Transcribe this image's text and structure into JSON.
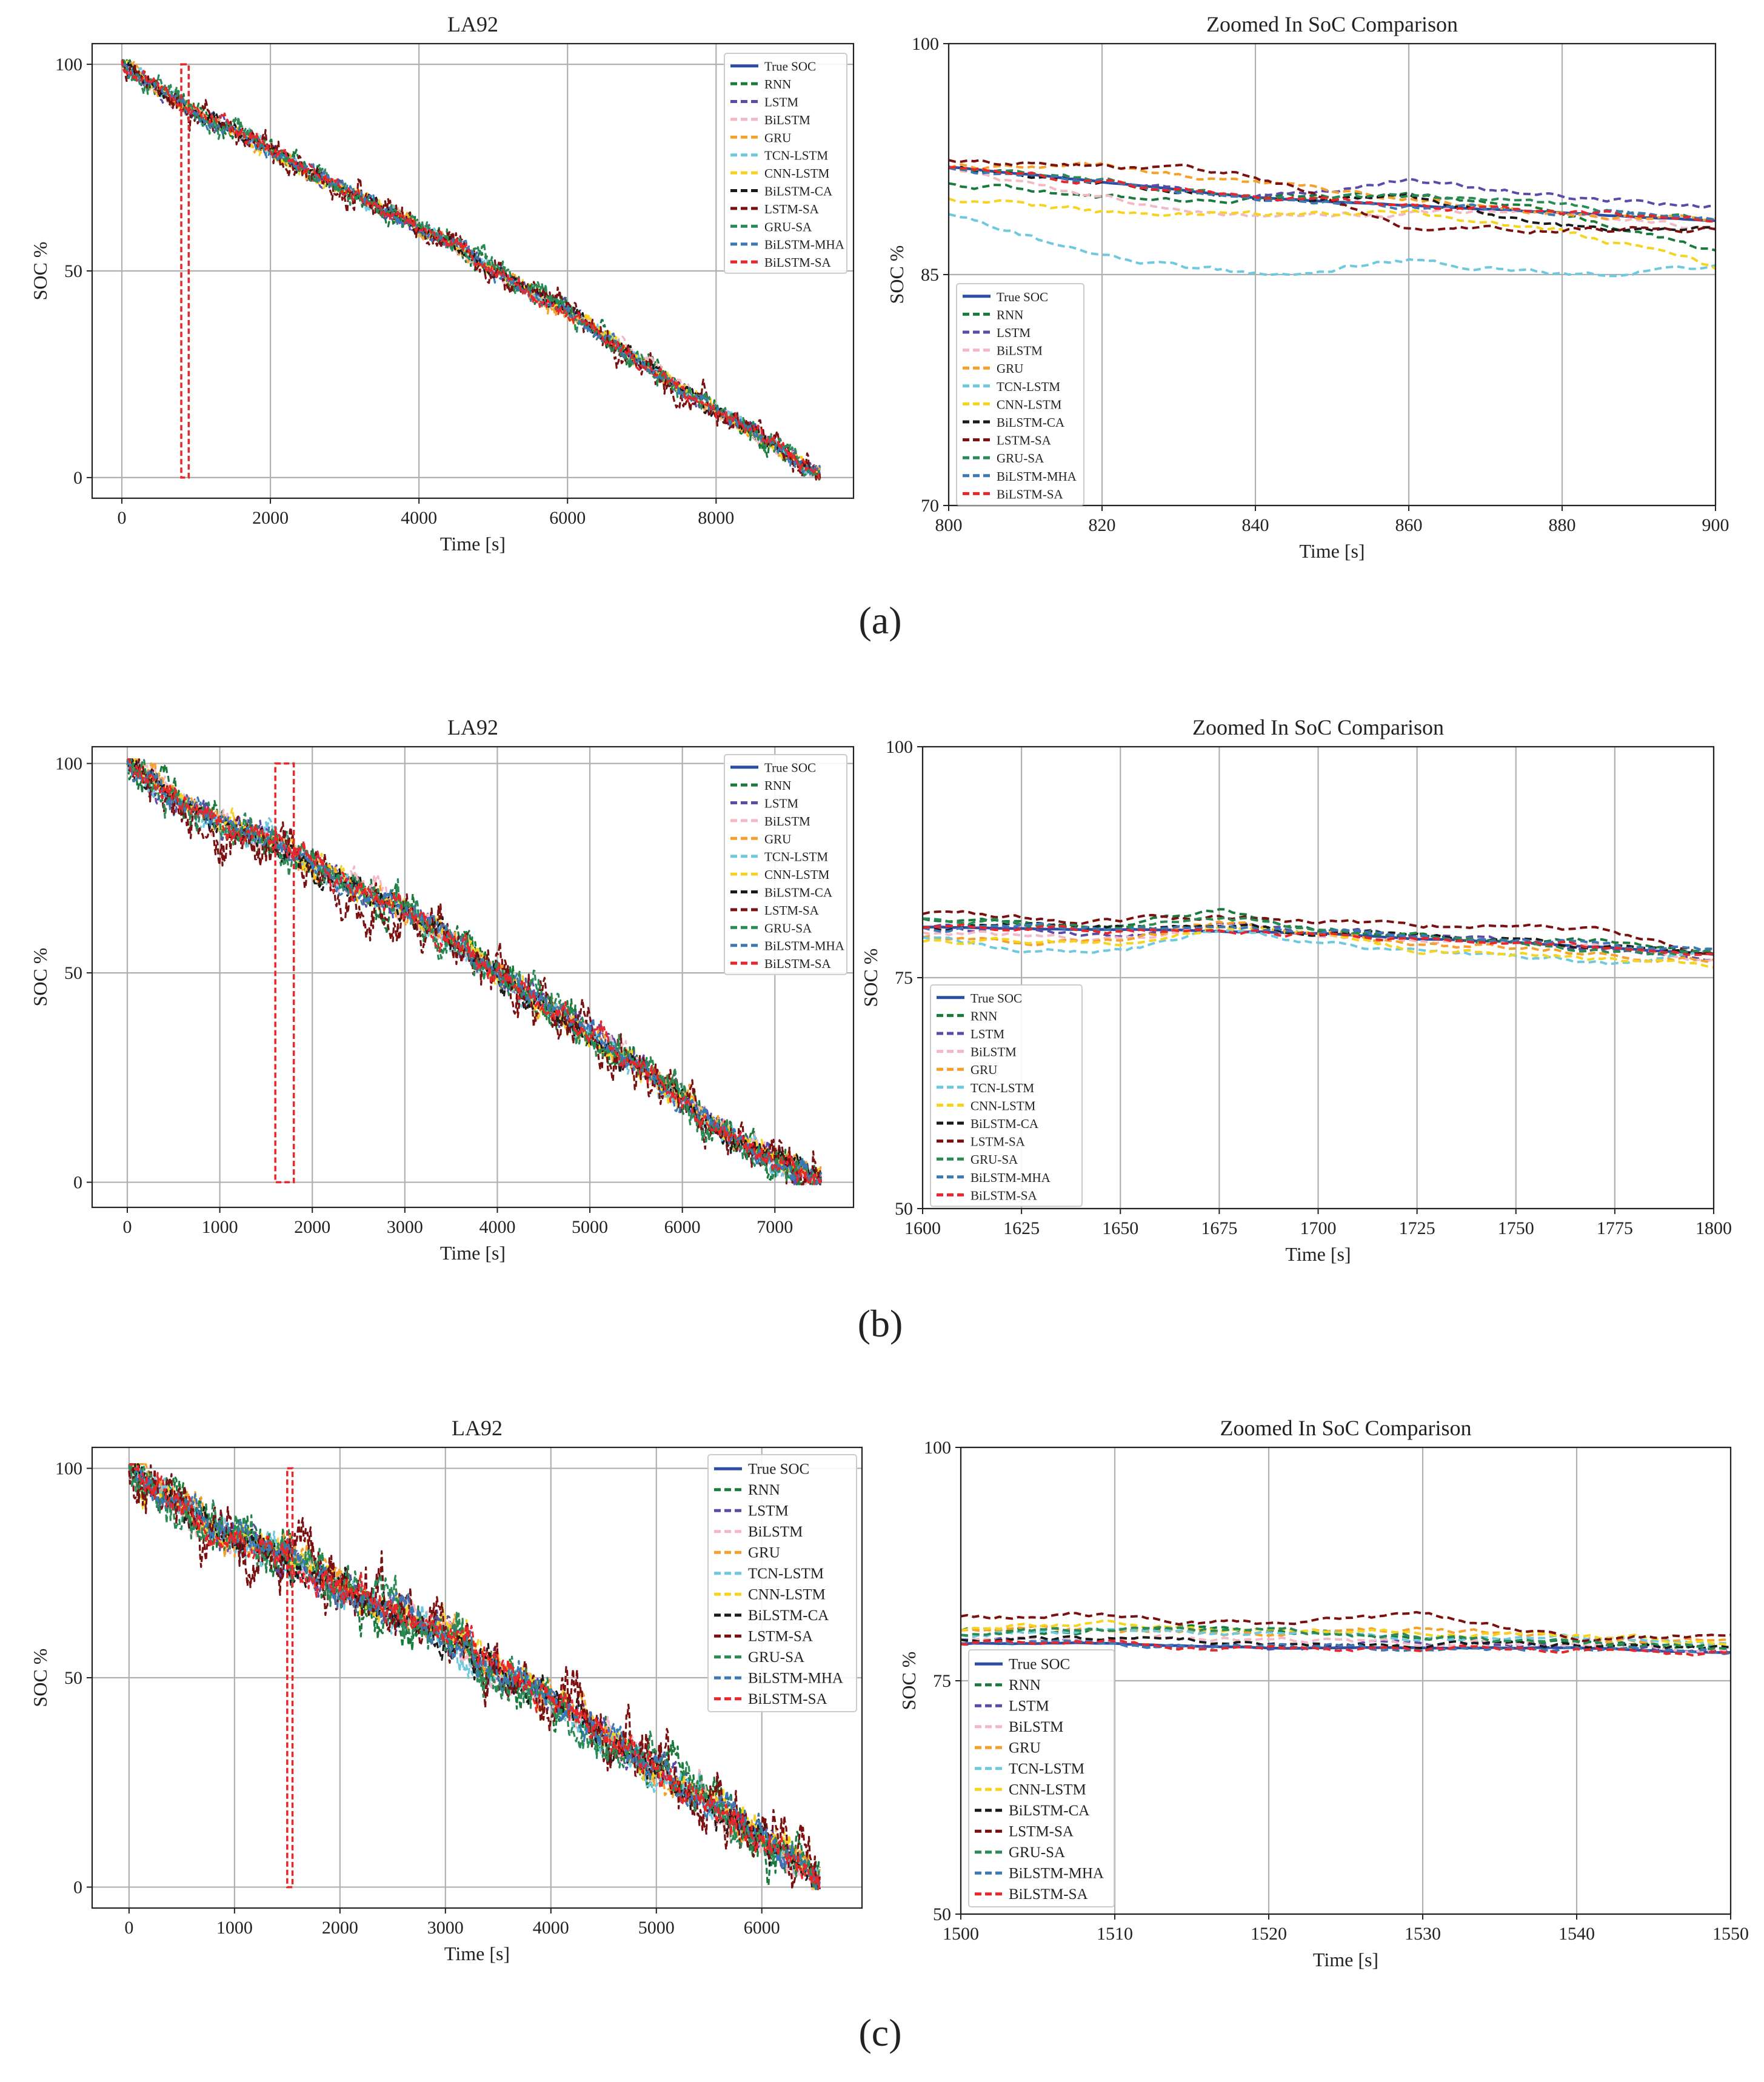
{
  "figure": {
    "series_names": [
      "True SOC",
      "RNN",
      "LSTM",
      "BiLSTM",
      "GRU",
      "TCN-LSTM",
      "CNN-LSTM",
      "BiLSTM-CA",
      "LSTM-SA",
      "GRU-SA",
      "BiLSTM-MHA",
      "BiLSTM-SA"
    ],
    "series_colors": [
      "#2b4ea3",
      "#1a7a3c",
      "#5b4ba8",
      "#f4b8c4",
      "#f5a02a",
      "#6ec9de",
      "#f6d31e",
      "#1a1a1a",
      "#7a1010",
      "#2a8a55",
      "#3b78b4",
      "#e8272a"
    ],
    "series_dashed": [
      false,
      true,
      true,
      true,
      true,
      true,
      true,
      true,
      true,
      true,
      true,
      true
    ],
    "panels": [
      {
        "caption": "(a)",
        "full": {
          "title": "LA92",
          "xlabel": "Time [s]",
          "ylabel": "SOC %",
          "xlim": [
            -400,
            9850
          ],
          "ylim": [
            -5,
            105
          ],
          "xticks": [
            0,
            2000,
            4000,
            6000,
            8000
          ],
          "yticks": [
            0,
            50,
            100
          ],
          "x_end": 9400,
          "zoom_box": [
            800,
            900
          ],
          "noise": 1.0
        },
        "zoom": {
          "title": "Zoomed In SoC Comparison",
          "xlabel": "Time [s]",
          "ylabel": "SOC %",
          "xlim": [
            800,
            900
          ],
          "ylim": [
            70,
            100
          ],
          "xticks": [
            800,
            820,
            840,
            860,
            880,
            900
          ],
          "yticks": [
            70,
            85,
            100
          ]
        }
      },
      {
        "caption": "(b)",
        "full": {
          "title": "LA92",
          "xlabel": "Time [s]",
          "ylabel": "SOC %",
          "xlim": [
            -380,
            7850
          ],
          "ylim": [
            -6,
            104
          ],
          "xticks": [
            0,
            1000,
            2000,
            3000,
            4000,
            5000,
            6000,
            7000
          ],
          "yticks": [
            0,
            50,
            100
          ],
          "x_end": 7500,
          "zoom_box": [
            1600,
            1800
          ],
          "noise": 1.6
        },
        "zoom": {
          "title": "Zoomed In SoC Comparison",
          "xlabel": "Time [s]",
          "ylabel": "SOC %",
          "xlim": [
            1600,
            1800
          ],
          "ylim": [
            50,
            100
          ],
          "xticks": [
            1600,
            1625,
            1650,
            1675,
            1700,
            1725,
            1750,
            1775,
            1800
          ],
          "yticks": [
            50,
            75,
            100
          ]
        }
      },
      {
        "caption": "(c)",
        "full": {
          "title": "LA92",
          "xlabel": "Time [s]",
          "ylabel": "SOC %",
          "xlim": [
            -350,
            6950
          ],
          "ylim": [
            -5,
            105
          ],
          "xticks": [
            0,
            1000,
            2000,
            3000,
            4000,
            5000,
            6000
          ],
          "yticks": [
            0,
            50,
            100
          ],
          "x_end": 6550,
          "zoom_box": [
            1500,
            1550
          ],
          "noise": 2.2
        },
        "zoom": {
          "title": "Zoomed In SoC Comparison",
          "xlabel": "Time [s]",
          "ylabel": "SOC %",
          "xlim": [
            1500,
            1550
          ],
          "ylim": [
            50,
            100
          ],
          "xticks": [
            1500,
            1510,
            1520,
            1530,
            1540,
            1550
          ],
          "yticks": [
            50,
            75,
            100
          ]
        }
      }
    ]
  },
  "chart_data": [
    {
      "type": "line",
      "title": "LA92",
      "xlabel": "Time [s]",
      "ylabel": "SOC %",
      "x": [
        0,
        500,
        1000,
        1500,
        2000,
        2500,
        3000,
        3500,
        4000,
        4500,
        5000,
        5500,
        6000,
        6500,
        7000,
        7500,
        8000,
        8500,
        9000,
        9400
      ],
      "series": [
        {
          "name": "True SOC",
          "values": [
            100,
            94,
            88,
            84,
            79,
            74,
            70,
            65,
            60,
            56,
            50,
            45,
            40,
            34,
            28,
            22,
            16,
            11,
            5,
            1
          ]
        }
      ]
    },
    {
      "type": "line",
      "title": "Zoomed In SoC Comparison",
      "xlabel": "Time [s]",
      "ylabel": "SOC %",
      "x": [
        800,
        820,
        840,
        860,
        880,
        900
      ],
      "series": [
        {
          "name": "True SOC",
          "values": [
            92,
            91,
            90,
            89.5,
            89,
            88.5
          ]
        },
        {
          "name": "RNN",
          "values": [
            91,
            90,
            90,
            90,
            89,
            86.5
          ]
        },
        {
          "name": "LSTM",
          "values": [
            92,
            91,
            90,
            91,
            90,
            89.5
          ]
        },
        {
          "name": "BiLSTM",
          "values": [
            92,
            90,
            89,
            89,
            89,
            88
          ]
        },
        {
          "name": "GRU",
          "values": [
            92,
            92,
            91,
            90,
            89,
            88.5
          ]
        },
        {
          "name": "TCN-LSTM",
          "values": [
            89,
            86,
            85,
            86,
            85,
            85.5
          ]
        },
        {
          "name": "CNN-LSTM",
          "values": [
            90,
            89,
            89,
            89,
            88,
            85.5
          ]
        },
        {
          "name": "BiLSTM-CA",
          "values": [
            92,
            91,
            90,
            90,
            88,
            88
          ]
        },
        {
          "name": "LSTM-SA",
          "values": [
            92.5,
            92,
            91.5,
            88,
            88,
            88
          ]
        },
        {
          "name": "GRU-SA",
          "values": [
            92,
            91,
            90,
            90,
            89.5,
            88.5
          ]
        },
        {
          "name": "BiLSTM-MHA",
          "values": [
            92,
            91,
            90,
            89.5,
            89,
            88.5
          ]
        },
        {
          "name": "BiLSTM-SA",
          "values": [
            92,
            91,
            90,
            89.5,
            89,
            88.5
          ]
        }
      ]
    },
    {
      "type": "line",
      "title": "LA92",
      "xlabel": "Time [s]",
      "ylabel": "SOC %",
      "x": [
        0,
        500,
        1000,
        1500,
        2000,
        2500,
        3000,
        3500,
        4000,
        4500,
        5000,
        5500,
        6000,
        6500,
        7000,
        7500
      ],
      "series": [
        {
          "name": "True SOC",
          "values": [
            100,
            92,
            86,
            82,
            76,
            70,
            65,
            58,
            50,
            42,
            35,
            28,
            20,
            12,
            5,
            1
          ]
        }
      ]
    },
    {
      "type": "line",
      "title": "Zoomed In SoC Comparison",
      "xlabel": "Time [s]",
      "ylabel": "SOC %",
      "x": [
        1600,
        1625,
        1650,
        1675,
        1700,
        1725,
        1750,
        1775,
        1800
      ],
      "series": [
        {
          "name": "True SOC",
          "values": [
            80.5,
            80.3,
            80.2,
            80,
            79.8,
            79.2,
            78.8,
            78.2,
            77.5
          ]
        },
        {
          "name": "RNN",
          "values": [
            81.5,
            81,
            80.5,
            82.5,
            80,
            79.5,
            79,
            79,
            77.5
          ]
        },
        {
          "name": "LSTM",
          "values": [
            80.5,
            80,
            79.5,
            81,
            80,
            79.5,
            79,
            78,
            77
          ]
        },
        {
          "name": "BiLSTM",
          "values": [
            80,
            79.5,
            79,
            80.5,
            79.5,
            79,
            78.5,
            78,
            77
          ]
        },
        {
          "name": "GRU",
          "values": [
            79.5,
            79,
            79,
            81,
            80,
            78.5,
            78.5,
            77.5,
            77
          ]
        },
        {
          "name": "TCN-LSTM",
          "values": [
            79.5,
            78,
            78,
            80,
            79,
            78,
            77.5,
            76.5,
            77.5
          ]
        },
        {
          "name": "CNN-LSTM",
          "values": [
            79,
            79,
            78.5,
            80.5,
            79.5,
            78,
            77.5,
            77,
            76.5
          ]
        },
        {
          "name": "BiLSTM-CA",
          "values": [
            80.5,
            80.5,
            80.5,
            80.5,
            80,
            79.5,
            79,
            78.5,
            77.5
          ]
        },
        {
          "name": "LSTM-SA",
          "values": [
            82,
            81.5,
            81,
            81.5,
            81,
            80.5,
            81,
            80,
            77.5
          ]
        },
        {
          "name": "GRU-SA",
          "values": [
            81.5,
            81,
            80.5,
            81.5,
            80.5,
            79.5,
            79,
            78,
            77.5
          ]
        },
        {
          "name": "BiLSTM-MHA",
          "values": [
            80.5,
            80.5,
            80.5,
            80.5,
            80,
            79.5,
            79,
            78.5,
            78
          ]
        },
        {
          "name": "BiLSTM-SA",
          "values": [
            80.5,
            80.3,
            80.2,
            80,
            79.8,
            79.2,
            78.8,
            78.2,
            77.5
          ]
        }
      ]
    },
    {
      "type": "line",
      "title": "LA92",
      "xlabel": "Time [s]",
      "ylabel": "SOC %",
      "x": [
        0,
        500,
        1000,
        1500,
        2000,
        2500,
        3000,
        3500,
        4000,
        4500,
        5000,
        5500,
        6000,
        6550
      ],
      "series": [
        {
          "name": "True SOC",
          "values": [
            100,
            91,
            83,
            79,
            72,
            66,
            60,
            52,
            45,
            36,
            28,
            20,
            12,
            1
          ]
        }
      ]
    },
    {
      "type": "line",
      "title": "Zoomed In SoC Comparison",
      "xlabel": "Time [s]",
      "ylabel": "SOC %",
      "x": [
        1500,
        1510,
        1520,
        1530,
        1540,
        1550
      ],
      "series": [
        {
          "name": "True SOC",
          "values": [
            79,
            79,
            78.5,
            78.5,
            78.5,
            78
          ]
        },
        {
          "name": "RNN",
          "values": [
            80.5,
            80.5,
            80.5,
            79.5,
            79,
            78.5
          ]
        },
        {
          "name": "LSTM",
          "values": [
            79.5,
            79,
            78.5,
            79,
            79,
            78
          ]
        },
        {
          "name": "BiLSTM",
          "values": [
            79.5,
            79.5,
            79.5,
            79,
            79,
            78
          ]
        },
        {
          "name": "GRU",
          "values": [
            80.5,
            80.5,
            80,
            80.5,
            79.5,
            79.5
          ]
        },
        {
          "name": "TCN-LSTM",
          "values": [
            80,
            80.5,
            80,
            79.5,
            79.5,
            79
          ]
        },
        {
          "name": "CNN-LSTM",
          "values": [
            80.5,
            81,
            80.5,
            80,
            80,
            79
          ]
        },
        {
          "name": "BiLSTM-CA",
          "values": [
            79.5,
            79.5,
            79,
            79,
            79,
            78.5
          ]
        },
        {
          "name": "LSTM-SA",
          "values": [
            82,
            82,
            81,
            82,
            79.5,
            80
          ]
        },
        {
          "name": "GRU-SA",
          "values": [
            80,
            80.5,
            80.5,
            79.5,
            79,
            78.5
          ]
        },
        {
          "name": "BiLSTM-MHA",
          "values": [
            79,
            79,
            78.5,
            78.5,
            78.5,
            78
          ]
        },
        {
          "name": "BiLSTM-SA",
          "values": [
            79,
            79,
            78.5,
            78.5,
            78.5,
            78
          ]
        }
      ]
    }
  ]
}
